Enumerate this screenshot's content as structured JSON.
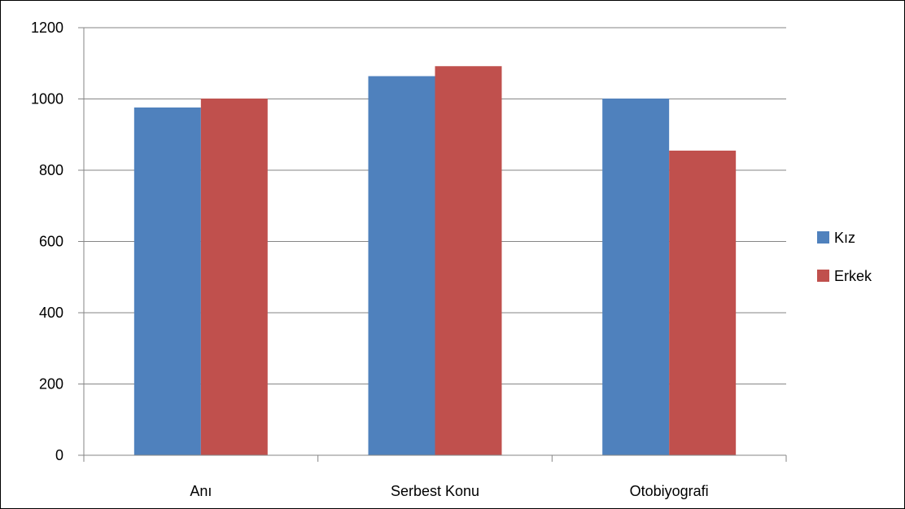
{
  "chart_data": {
    "type": "bar",
    "categories": [
      "Anı",
      "Serbest Konu",
      "Otobiyografi"
    ],
    "series": [
      {
        "name": "Kız",
        "color": "#4F81BD",
        "values": [
          976,
          1064,
          1001
        ]
      },
      {
        "name": "Erkek",
        "color": "#C0504D",
        "values": [
          1001,
          1092,
          855
        ]
      }
    ],
    "ylim": [
      0,
      1200
    ],
    "yticks": [
      0,
      200,
      400,
      600,
      800,
      1000,
      1200
    ],
    "grid": true,
    "legend_position": "right"
  }
}
